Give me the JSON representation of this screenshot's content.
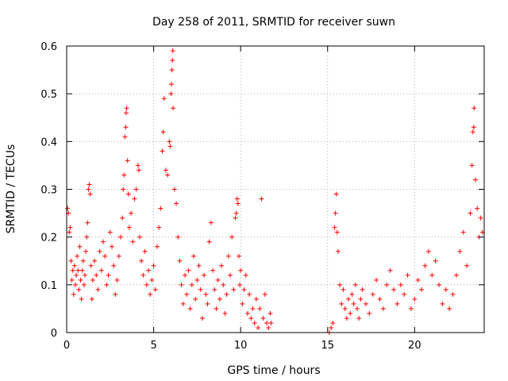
{
  "chart_data": {
    "type": "scatter",
    "title": "Day 258 of 2011, SRMTID for receiver suwn",
    "xlabel": "GPS time / hours",
    "ylabel": "SRMTID / TECUs",
    "xlim": [
      0,
      24
    ],
    "ylim": [
      0,
      0.6
    ],
    "x_ticks": [
      0,
      5,
      10,
      15,
      20
    ],
    "x_tick_labels": [
      "0",
      "5",
      "10",
      "15",
      "20"
    ],
    "y_ticks": [
      0,
      0.1,
      0.2,
      0.3,
      0.4,
      0.5,
      0.6
    ],
    "y_tick_labels": [
      "0",
      "0.1",
      "0.2",
      "0.3",
      "0.4",
      "0.5",
      "0.6"
    ],
    "grid": true,
    "marker": "+",
    "series_color": "#ff0000",
    "series": [
      {
        "name": "SRMTID",
        "points": [
          [
            0.05,
            0.26
          ],
          [
            0.1,
            0.25
          ],
          [
            0.15,
            0.21
          ],
          [
            0.2,
            0.22
          ],
          [
            0.25,
            0.15
          ],
          [
            0.3,
            0.11
          ],
          [
            0.35,
            0.13
          ],
          [
            0.4,
            0.08
          ],
          [
            0.45,
            0.14
          ],
          [
            0.5,
            0.1
          ],
          [
            0.55,
            0.12
          ],
          [
            0.6,
            0.16
          ],
          [
            0.65,
            0.13
          ],
          [
            0.7,
            0.09
          ],
          [
            0.75,
            0.18
          ],
          [
            0.8,
            0.11
          ],
          [
            0.85,
            0.07
          ],
          [
            0.9,
            0.13
          ],
          [
            0.95,
            0.15
          ],
          [
            1.0,
            0.1
          ],
          [
            1.05,
            0.12
          ],
          [
            1.1,
            0.17
          ],
          [
            1.15,
            0.2
          ],
          [
            1.2,
            0.23
          ],
          [
            1.25,
            0.3
          ],
          [
            1.3,
            0.31
          ],
          [
            1.35,
            0.29
          ],
          [
            1.4,
            0.14
          ],
          [
            1.45,
            0.07
          ],
          [
            1.5,
            0.11
          ],
          [
            1.6,
            0.15
          ],
          [
            1.7,
            0.12
          ],
          [
            1.8,
            0.09
          ],
          [
            1.9,
            0.17
          ],
          [
            2.0,
            0.13
          ],
          [
            2.1,
            0.19
          ],
          [
            2.2,
            0.16
          ],
          [
            2.3,
            0.1
          ],
          [
            2.4,
            0.12
          ],
          [
            2.5,
            0.21
          ],
          [
            2.6,
            0.18
          ],
          [
            2.7,
            0.14
          ],
          [
            2.8,
            0.08
          ],
          [
            2.9,
            0.11
          ],
          [
            3.0,
            0.16
          ],
          [
            3.1,
            0.2
          ],
          [
            3.2,
            0.24
          ],
          [
            3.25,
            0.3
          ],
          [
            3.3,
            0.33
          ],
          [
            3.35,
            0.41
          ],
          [
            3.4,
            0.43
          ],
          [
            3.42,
            0.46
          ],
          [
            3.45,
            0.47
          ],
          [
            3.5,
            0.36
          ],
          [
            3.55,
            0.29
          ],
          [
            3.6,
            0.22
          ],
          [
            3.7,
            0.25
          ],
          [
            3.8,
            0.19
          ],
          [
            3.9,
            0.28
          ],
          [
            4.0,
            0.3
          ],
          [
            4.1,
            0.35
          ],
          [
            4.15,
            0.34
          ],
          [
            4.2,
            0.2
          ],
          [
            4.3,
            0.15
          ],
          [
            4.4,
            0.12
          ],
          [
            4.5,
            0.17
          ],
          [
            4.6,
            0.1
          ],
          [
            4.7,
            0.13
          ],
          [
            4.8,
            0.08
          ],
          [
            4.9,
            0.11
          ],
          [
            5.0,
            0.14
          ],
          [
            5.1,
            0.09
          ],
          [
            5.2,
            0.18
          ],
          [
            5.3,
            0.22
          ],
          [
            5.4,
            0.26
          ],
          [
            5.5,
            0.38
          ],
          [
            5.55,
            0.42
          ],
          [
            5.6,
            0.49
          ],
          [
            5.7,
            0.34
          ],
          [
            5.8,
            0.33
          ],
          [
            5.9,
            0.4
          ],
          [
            5.95,
            0.39
          ],
          [
            6.0,
            0.5
          ],
          [
            6.02,
            0.52
          ],
          [
            6.05,
            0.55
          ],
          [
            6.08,
            0.57
          ],
          [
            6.1,
            0.59
          ],
          [
            6.12,
            0.47
          ],
          [
            6.2,
            0.3
          ],
          [
            6.3,
            0.27
          ],
          [
            6.4,
            0.2
          ],
          [
            6.5,
            0.15
          ],
          [
            6.6,
            0.1
          ],
          [
            6.7,
            0.06
          ],
          [
            6.8,
            0.12
          ],
          [
            6.9,
            0.08
          ],
          [
            7.0,
            0.13
          ],
          [
            7.1,
            0.05
          ],
          [
            7.2,
            0.1
          ],
          [
            7.3,
            0.16
          ],
          [
            7.4,
            0.07
          ],
          [
            7.5,
            0.11
          ],
          [
            7.6,
            0.14
          ],
          [
            7.7,
            0.09
          ],
          [
            7.8,
            0.03
          ],
          [
            7.9,
            0.12
          ],
          [
            8.0,
            0.08
          ],
          [
            8.1,
            0.06
          ],
          [
            8.2,
            0.19
          ],
          [
            8.3,
            0.23
          ],
          [
            8.4,
            0.13
          ],
          [
            8.5,
            0.09
          ],
          [
            8.6,
            0.05
          ],
          [
            8.7,
            0.11
          ],
          [
            8.8,
            0.07
          ],
          [
            8.9,
            0.14
          ],
          [
            9.0,
            0.1
          ],
          [
            9.1,
            0.04
          ],
          [
            9.2,
            0.08
          ],
          [
            9.3,
            0.16
          ],
          [
            9.4,
            0.12
          ],
          [
            9.5,
            0.2
          ],
          [
            9.6,
            0.09
          ],
          [
            9.7,
            0.24
          ],
          [
            9.75,
            0.25
          ],
          [
            9.8,
            0.28
          ],
          [
            9.85,
            0.27
          ],
          [
            9.9,
            0.16
          ],
          [
            9.95,
            0.1
          ],
          [
            10.0,
            0.13
          ],
          [
            10.1,
            0.06
          ],
          [
            10.2,
            0.09
          ],
          [
            10.3,
            0.12
          ],
          [
            10.4,
            0.04
          ],
          [
            10.5,
            0.08
          ],
          [
            10.6,
            0.03
          ],
          [
            10.7,
            0.05
          ],
          [
            10.8,
            0.02
          ],
          [
            10.9,
            0.07
          ],
          [
            11.0,
            0.01
          ],
          [
            11.1,
            0.05
          ],
          [
            11.2,
            0.28
          ],
          [
            11.3,
            0.03
          ],
          [
            11.4,
            0.08
          ],
          [
            11.5,
            0.02
          ],
          [
            11.6,
            0.01
          ],
          [
            11.7,
            0.04
          ],
          [
            11.75,
            0.02
          ],
          [
            15.1,
            0.0
          ],
          [
            15.2,
            0.01
          ],
          [
            15.3,
            0.02
          ],
          [
            15.4,
            0.22
          ],
          [
            15.45,
            0.25
          ],
          [
            15.5,
            0.29
          ],
          [
            15.55,
            0.21
          ],
          [
            15.6,
            0.17
          ],
          [
            15.7,
            0.1
          ],
          [
            15.8,
            0.06
          ],
          [
            15.9,
            0.09
          ],
          [
            16.0,
            0.05
          ],
          [
            16.1,
            0.03
          ],
          [
            16.2,
            0.07
          ],
          [
            16.3,
            0.04
          ],
          [
            16.4,
            0.08
          ],
          [
            16.5,
            0.06
          ],
          [
            16.6,
            0.1
          ],
          [
            16.7,
            0.05
          ],
          [
            16.8,
            0.03
          ],
          [
            16.9,
            0.07
          ],
          [
            17.0,
            0.09
          ],
          [
            17.2,
            0.06
          ],
          [
            17.4,
            0.04
          ],
          [
            17.6,
            0.08
          ],
          [
            17.8,
            0.11
          ],
          [
            18.0,
            0.07
          ],
          [
            18.2,
            0.05
          ],
          [
            18.4,
            0.1
          ],
          [
            18.6,
            0.13
          ],
          [
            18.8,
            0.09
          ],
          [
            19.0,
            0.06
          ],
          [
            19.2,
            0.1
          ],
          [
            19.4,
            0.08
          ],
          [
            19.6,
            0.12
          ],
          [
            19.8,
            0.05
          ],
          [
            20.0,
            0.07
          ],
          [
            20.2,
            0.11
          ],
          [
            20.4,
            0.09
          ],
          [
            20.6,
            0.14
          ],
          [
            20.8,
            0.17
          ],
          [
            21.0,
            0.12
          ],
          [
            21.2,
            0.15
          ],
          [
            21.4,
            0.1
          ],
          [
            21.6,
            0.06
          ],
          [
            21.8,
            0.09
          ],
          [
            22.0,
            0.05
          ],
          [
            22.2,
            0.08
          ],
          [
            22.4,
            0.12
          ],
          [
            22.6,
            0.17
          ],
          [
            22.8,
            0.21
          ],
          [
            23.0,
            0.14
          ],
          [
            23.2,
            0.25
          ],
          [
            23.3,
            0.35
          ],
          [
            23.35,
            0.42
          ],
          [
            23.4,
            0.43
          ],
          [
            23.42,
            0.47
          ],
          [
            23.5,
            0.32
          ],
          [
            23.6,
            0.26
          ],
          [
            23.7,
            0.2
          ],
          [
            23.8,
            0.24
          ],
          [
            23.9,
            0.21
          ]
        ]
      }
    ]
  }
}
